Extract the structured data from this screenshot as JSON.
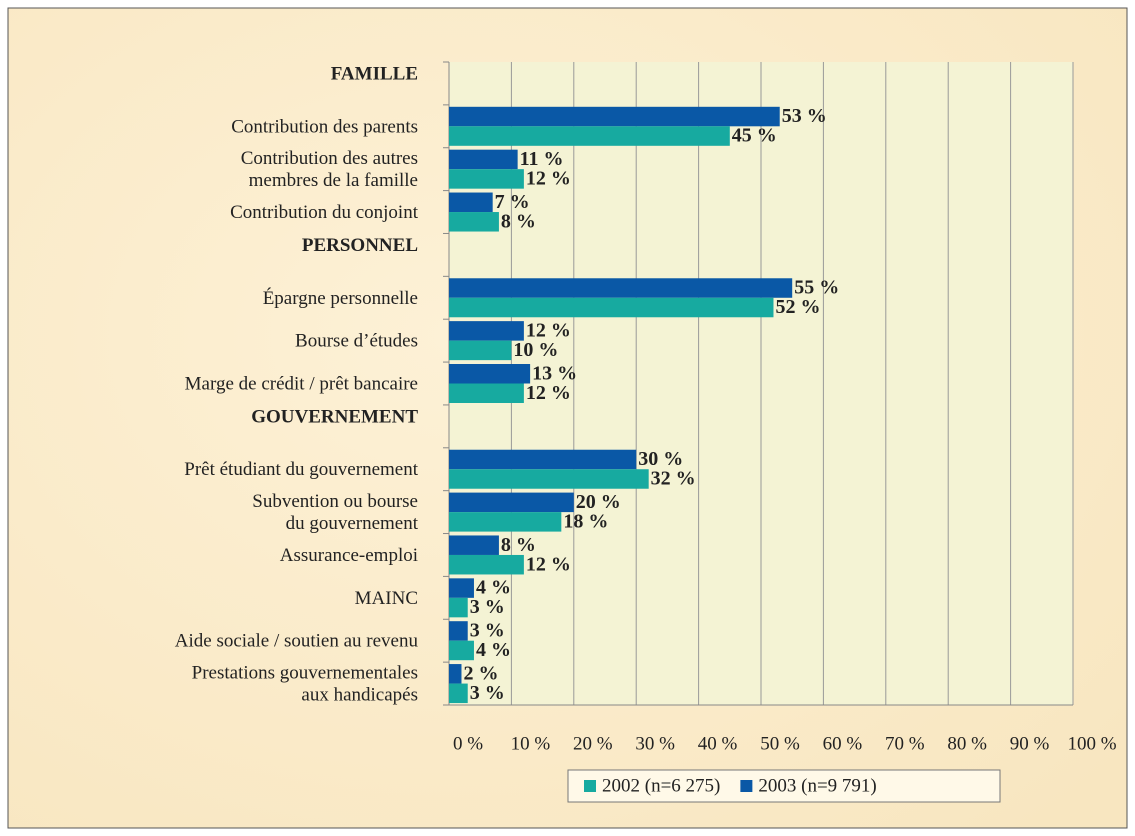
{
  "chart_data": {
    "type": "hbar",
    "categories": [
      "FAMILLE",
      "Contribution des parents",
      "Contribution des autres\nmembres de la famille",
      "Contribution du conjoint",
      "PERSONNEL",
      "Épargne personnelle",
      "Bourse d’études",
      "Marge de crédit / prêt bancaire",
      "GOUVERNEMENT",
      "Prêt étudiant du gouvernement",
      "Subvention ou bourse\ndu gouvernement",
      "Assurance-emploi",
      "MAINC",
      "Aide sociale / soutien au revenu",
      "Prestations gouvernementales\naux handicapés"
    ],
    "series": [
      {
        "name": "2002 (n=6 275)",
        "color": "#17aaa0",
        "values": [
          null,
          45,
          12,
          8,
          null,
          52,
          10,
          12,
          null,
          32,
          18,
          12,
          3,
          4,
          3
        ],
        "value_labels": [
          null,
          "45 %",
          "12 %",
          "8 %",
          null,
          "52 %",
          "10 %",
          "12 %",
          null,
          "32 %",
          "18 %",
          "12 %",
          "3 %",
          "4 %",
          "3 %"
        ]
      },
      {
        "name": "2003 (n=9 791)",
        "color": "#0a58a6",
        "values": [
          null,
          53,
          11,
          7,
          null,
          55,
          12,
          13,
          null,
          30,
          20,
          8,
          4,
          3,
          2
        ],
        "value_labels": [
          null,
          "53 %",
          "11 %",
          "7 %",
          null,
          "55 %",
          "12 %",
          "13 %",
          null,
          "30 %",
          "20 %",
          "8 %",
          "4 %",
          "3 %",
          "2 %"
        ]
      }
    ],
    "xlim": [
      0,
      100
    ],
    "xticks": [
      {
        "value": 0,
        "label": "0 %"
      },
      {
        "value": 10,
        "label": "10 %"
      },
      {
        "value": 20,
        "label": "20 %"
      },
      {
        "value": 30,
        "label": "30 %"
      },
      {
        "value": 40,
        "label": "40 %"
      },
      {
        "value": 50,
        "label": "50 %"
      },
      {
        "value": 60,
        "label": "60 %"
      },
      {
        "value": 70,
        "label": "70 %"
      },
      {
        "value": 80,
        "label": "80 %"
      },
      {
        "value": 90,
        "label": "90 %"
      },
      {
        "value": 100,
        "label": "100 %"
      }
    ],
    "grid": true,
    "legend": "bottom"
  }
}
